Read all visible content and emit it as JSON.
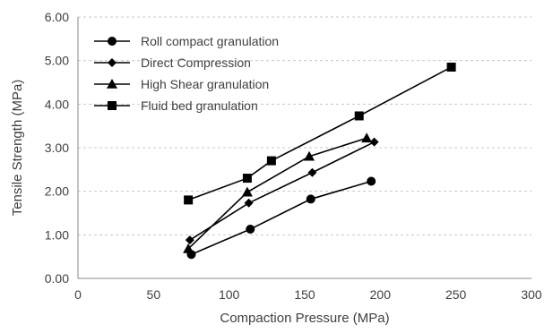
{
  "chart_data": {
    "type": "line",
    "title": "",
    "xlabel": "Compaction Pressure (MPa)",
    "ylabel": "Tensile Strength (MPa)",
    "xlim": [
      0,
      300
    ],
    "ylim": [
      0,
      6
    ],
    "x_ticks": [
      0,
      50,
      100,
      150,
      200,
      250,
      300
    ],
    "x_tick_labels": [
      "0",
      "50",
      "100",
      "150",
      "200",
      "250",
      "300"
    ],
    "y_ticks": [
      0,
      1,
      2,
      3,
      4,
      5,
      6
    ],
    "y_tick_labels": [
      "0.00",
      "1.00",
      "2.00",
      "3.00",
      "4.00",
      "5.00",
      "6.00"
    ],
    "grid": "horizontal dashed",
    "legend_position": "top-left",
    "series": [
      {
        "name": "Roll compact granulation",
        "marker": "circle",
        "color": "#000000",
        "x": [
          75,
          114,
          154,
          194
        ],
        "y": [
          0.55,
          1.13,
          1.82,
          2.23
        ]
      },
      {
        "name": "Direct Compression",
        "marker": "diamond",
        "color": "#000000",
        "x": [
          74,
          113,
          155,
          196
        ],
        "y": [
          0.88,
          1.73,
          2.43,
          3.13
        ]
      },
      {
        "name": "High Shear granulation",
        "marker": "triangle",
        "color": "#000000",
        "x": [
          73,
          112,
          153,
          191
        ],
        "y": [
          0.68,
          1.98,
          2.8,
          3.22
        ]
      },
      {
        "name": "Fluid bed granulation",
        "marker": "square",
        "color": "#000000",
        "x": [
          73,
          112,
          128,
          186,
          247
        ],
        "y": [
          1.8,
          2.3,
          2.7,
          3.73,
          4.85
        ]
      }
    ]
  }
}
